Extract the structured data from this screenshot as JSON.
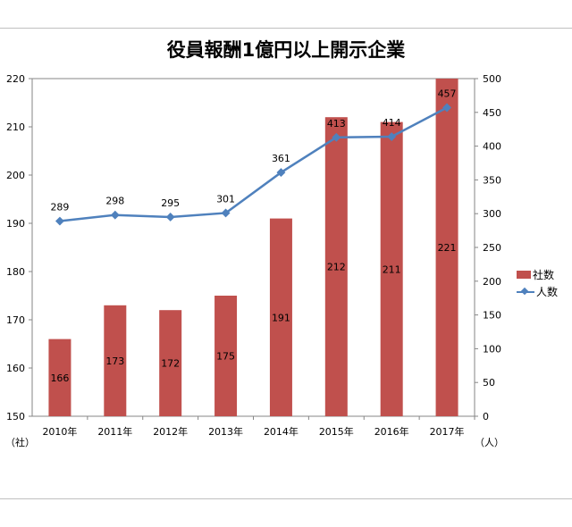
{
  "title": "役員報酬1億円以上開示企業",
  "left_unit": "（社）",
  "right_unit": "（人）",
  "colors": {
    "bar": "#c0504d",
    "line": "#4f81bd"
  },
  "chart_data": {
    "type": "bar",
    "categories": [
      "2010年",
      "2011年",
      "2012年",
      "2013年",
      "2014年",
      "2015年",
      "2016年",
      "2017年"
    ],
    "series": [
      {
        "name": "社数",
        "type": "bar",
        "axis": "left",
        "values": [
          166,
          173,
          172,
          175,
          191,
          212,
          211,
          221
        ]
      },
      {
        "name": "人数",
        "type": "line",
        "axis": "right",
        "values": [
          289,
          298,
          295,
          301,
          361,
          413,
          414,
          457
        ]
      }
    ],
    "ylim_left": [
      150,
      220
    ],
    "yticks_left": [
      150,
      160,
      170,
      180,
      190,
      200,
      210,
      220
    ],
    "ylim_right": [
      0,
      500
    ],
    "yticks_right": [
      0,
      50,
      100,
      150,
      200,
      250,
      300,
      350,
      400,
      450,
      500
    ],
    "legend_position": "right",
    "grid": false
  }
}
